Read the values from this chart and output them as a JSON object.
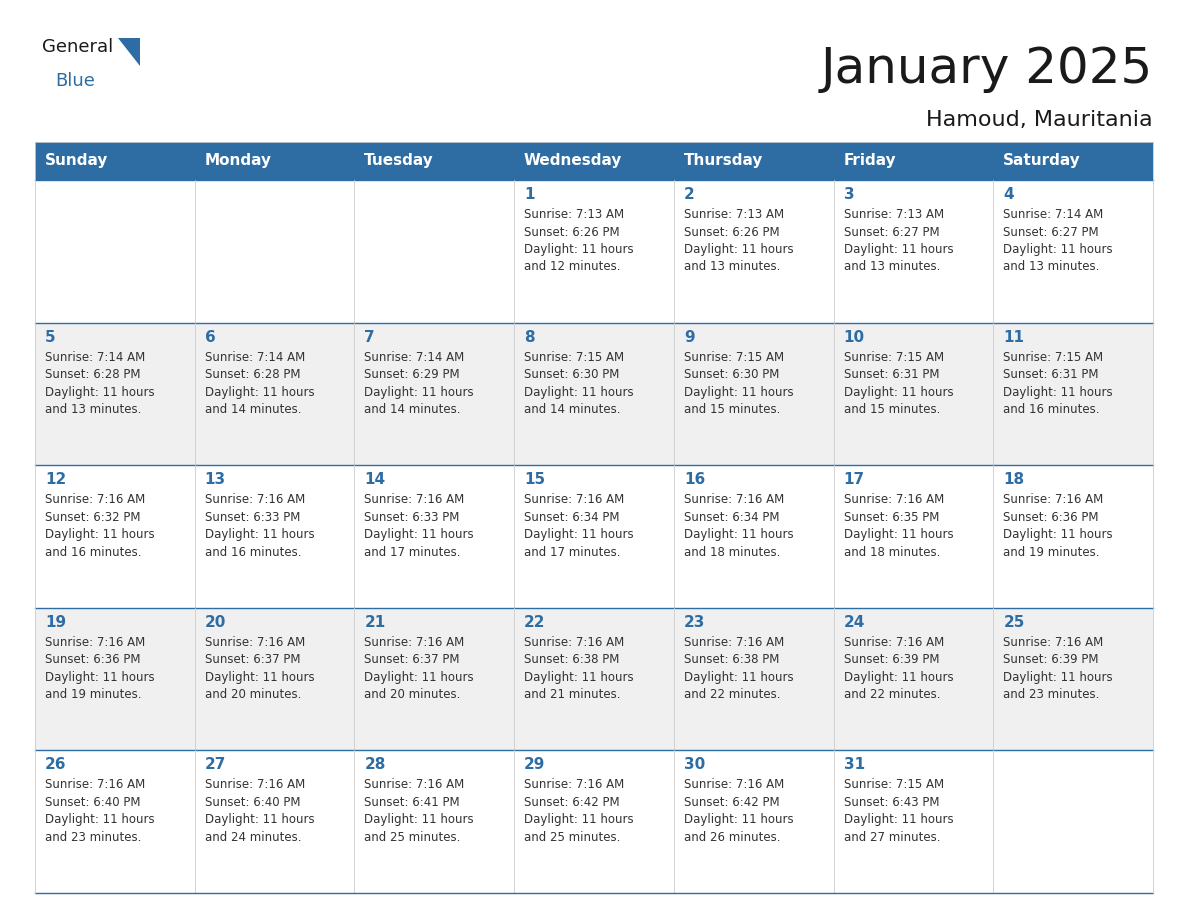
{
  "title": "January 2025",
  "subtitle": "Hamoud, Mauritania",
  "header_color": "#2E6DA4",
  "header_text_color": "#FFFFFF",
  "border_color": "#CCCCCC",
  "row_border_color": "#2E6DA4",
  "text_color": "#333333",
  "day_number_color": "#2E6DA4",
  "bg_color": "#FFFFFF",
  "days_of_week": [
    "Sunday",
    "Monday",
    "Tuesday",
    "Wednesday",
    "Thursday",
    "Friday",
    "Saturday"
  ],
  "weeks": [
    [
      {
        "day": 0,
        "info": ""
      },
      {
        "day": 0,
        "info": ""
      },
      {
        "day": 0,
        "info": ""
      },
      {
        "day": 1,
        "info": "Sunrise: 7:13 AM\nSunset: 6:26 PM\nDaylight: 11 hours\nand 12 minutes."
      },
      {
        "day": 2,
        "info": "Sunrise: 7:13 AM\nSunset: 6:26 PM\nDaylight: 11 hours\nand 13 minutes."
      },
      {
        "day": 3,
        "info": "Sunrise: 7:13 AM\nSunset: 6:27 PM\nDaylight: 11 hours\nand 13 minutes."
      },
      {
        "day": 4,
        "info": "Sunrise: 7:14 AM\nSunset: 6:27 PM\nDaylight: 11 hours\nand 13 minutes."
      }
    ],
    [
      {
        "day": 5,
        "info": "Sunrise: 7:14 AM\nSunset: 6:28 PM\nDaylight: 11 hours\nand 13 minutes."
      },
      {
        "day": 6,
        "info": "Sunrise: 7:14 AM\nSunset: 6:28 PM\nDaylight: 11 hours\nand 14 minutes."
      },
      {
        "day": 7,
        "info": "Sunrise: 7:14 AM\nSunset: 6:29 PM\nDaylight: 11 hours\nand 14 minutes."
      },
      {
        "day": 8,
        "info": "Sunrise: 7:15 AM\nSunset: 6:30 PM\nDaylight: 11 hours\nand 14 minutes."
      },
      {
        "day": 9,
        "info": "Sunrise: 7:15 AM\nSunset: 6:30 PM\nDaylight: 11 hours\nand 15 minutes."
      },
      {
        "day": 10,
        "info": "Sunrise: 7:15 AM\nSunset: 6:31 PM\nDaylight: 11 hours\nand 15 minutes."
      },
      {
        "day": 11,
        "info": "Sunrise: 7:15 AM\nSunset: 6:31 PM\nDaylight: 11 hours\nand 16 minutes."
      }
    ],
    [
      {
        "day": 12,
        "info": "Sunrise: 7:16 AM\nSunset: 6:32 PM\nDaylight: 11 hours\nand 16 minutes."
      },
      {
        "day": 13,
        "info": "Sunrise: 7:16 AM\nSunset: 6:33 PM\nDaylight: 11 hours\nand 16 minutes."
      },
      {
        "day": 14,
        "info": "Sunrise: 7:16 AM\nSunset: 6:33 PM\nDaylight: 11 hours\nand 17 minutes."
      },
      {
        "day": 15,
        "info": "Sunrise: 7:16 AM\nSunset: 6:34 PM\nDaylight: 11 hours\nand 17 minutes."
      },
      {
        "day": 16,
        "info": "Sunrise: 7:16 AM\nSunset: 6:34 PM\nDaylight: 11 hours\nand 18 minutes."
      },
      {
        "day": 17,
        "info": "Sunrise: 7:16 AM\nSunset: 6:35 PM\nDaylight: 11 hours\nand 18 minutes."
      },
      {
        "day": 18,
        "info": "Sunrise: 7:16 AM\nSunset: 6:36 PM\nDaylight: 11 hours\nand 19 minutes."
      }
    ],
    [
      {
        "day": 19,
        "info": "Sunrise: 7:16 AM\nSunset: 6:36 PM\nDaylight: 11 hours\nand 19 minutes."
      },
      {
        "day": 20,
        "info": "Sunrise: 7:16 AM\nSunset: 6:37 PM\nDaylight: 11 hours\nand 20 minutes."
      },
      {
        "day": 21,
        "info": "Sunrise: 7:16 AM\nSunset: 6:37 PM\nDaylight: 11 hours\nand 20 minutes."
      },
      {
        "day": 22,
        "info": "Sunrise: 7:16 AM\nSunset: 6:38 PM\nDaylight: 11 hours\nand 21 minutes."
      },
      {
        "day": 23,
        "info": "Sunrise: 7:16 AM\nSunset: 6:38 PM\nDaylight: 11 hours\nand 22 minutes."
      },
      {
        "day": 24,
        "info": "Sunrise: 7:16 AM\nSunset: 6:39 PM\nDaylight: 11 hours\nand 22 minutes."
      },
      {
        "day": 25,
        "info": "Sunrise: 7:16 AM\nSunset: 6:39 PM\nDaylight: 11 hours\nand 23 minutes."
      }
    ],
    [
      {
        "day": 26,
        "info": "Sunrise: 7:16 AM\nSunset: 6:40 PM\nDaylight: 11 hours\nand 23 minutes."
      },
      {
        "day": 27,
        "info": "Sunrise: 7:16 AM\nSunset: 6:40 PM\nDaylight: 11 hours\nand 24 minutes."
      },
      {
        "day": 28,
        "info": "Sunrise: 7:16 AM\nSunset: 6:41 PM\nDaylight: 11 hours\nand 25 minutes."
      },
      {
        "day": 29,
        "info": "Sunrise: 7:16 AM\nSunset: 6:42 PM\nDaylight: 11 hours\nand 25 minutes."
      },
      {
        "day": 30,
        "info": "Sunrise: 7:16 AM\nSunset: 6:42 PM\nDaylight: 11 hours\nand 26 minutes."
      },
      {
        "day": 31,
        "info": "Sunrise: 7:15 AM\nSunset: 6:43 PM\nDaylight: 11 hours\nand 27 minutes."
      },
      {
        "day": 0,
        "info": ""
      }
    ]
  ],
  "logo_general_color": "#1a1a1a",
  "logo_blue_color": "#2E6DA4",
  "logo_triangle_color": "#2E6DA4",
  "title_fontsize": 36,
  "subtitle_fontsize": 16,
  "header_fontsize": 11,
  "day_num_fontsize": 11,
  "info_fontsize": 8.5
}
